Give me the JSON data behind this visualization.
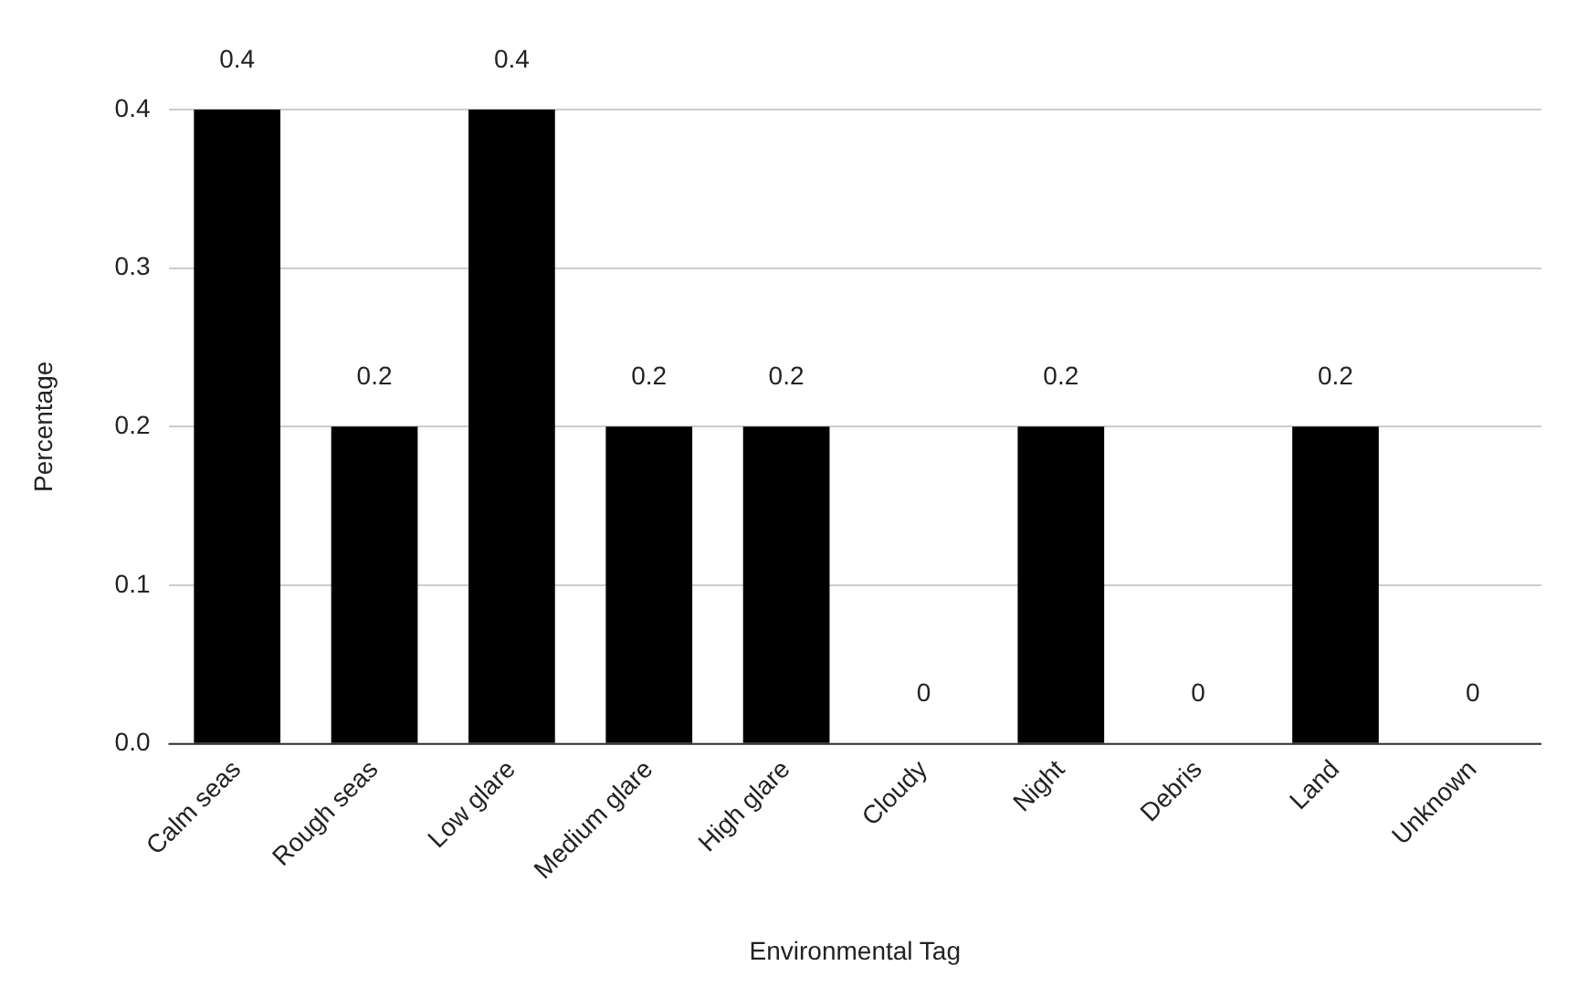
{
  "chart_data": {
    "type": "bar",
    "xlabel": "Environmental Tag",
    "ylabel": "Percentage",
    "categories": [
      "Calm seas",
      "Rough seas",
      "Low glare",
      "Medium glare",
      "High glare",
      "Cloudy",
      "Night",
      "Debris",
      "Land",
      "Unknown"
    ],
    "values": [
      0.4,
      0.2,
      0.4,
      0.2,
      0.2,
      0,
      0.2,
      0,
      0.2,
      0
    ],
    "color": "#000000",
    "ylim": [
      0,
      0.4
    ],
    "yticks": [
      {
        "value": 0,
        "label": "0.0"
      },
      0.1,
      0.2,
      0.3,
      0.4
    ],
    "grid": "y",
    "data_labels": true,
    "legend": false
  }
}
